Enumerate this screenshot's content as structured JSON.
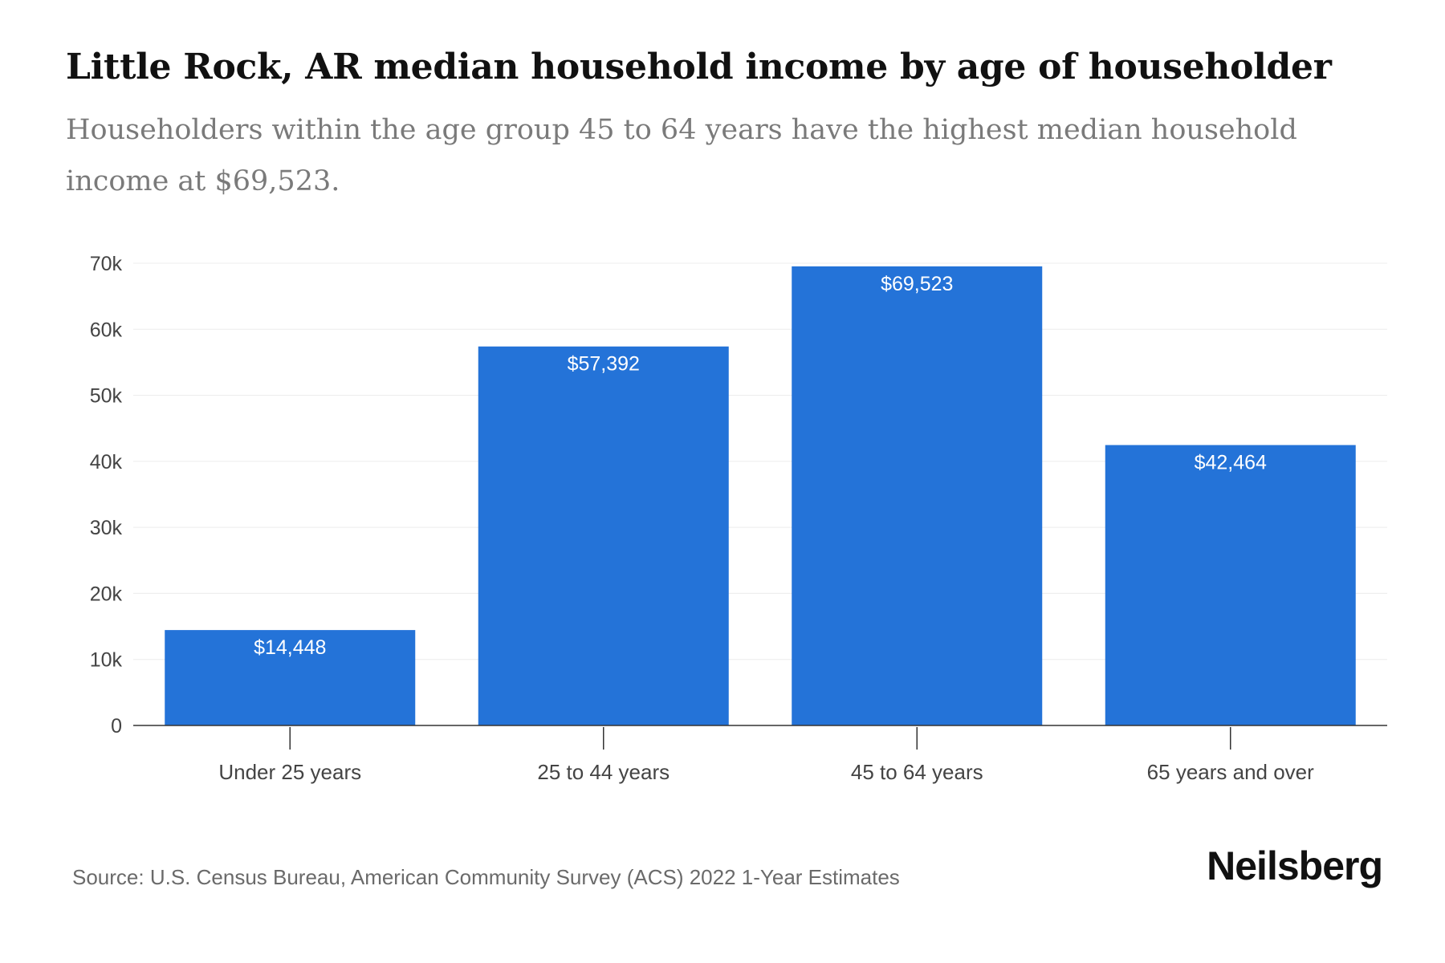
{
  "header": {
    "title": "Little Rock, AR median household income by age of householder",
    "subtitle": "Householders within the age group 45 to 64 years have the highest median household income at $69,523."
  },
  "chart_data": {
    "type": "bar",
    "categories": [
      "Under 25 years",
      "25 to 44 years",
      "45 to 64 years",
      "65 years and over"
    ],
    "values": [
      14448,
      57392,
      69523,
      42464
    ],
    "data_labels": [
      "$14,448",
      "$57,392",
      "$69,523",
      "$42,464"
    ],
    "ylim": [
      0,
      70000
    ],
    "yticks": [
      0,
      10000,
      20000,
      30000,
      40000,
      50000,
      60000,
      70000
    ],
    "ytick_labels": [
      "0",
      "10k",
      "20k",
      "30k",
      "40k",
      "50k",
      "60k",
      "70k"
    ],
    "grid": true,
    "bar_color": "#2473d8",
    "xlabel": "",
    "ylabel": ""
  },
  "footer": {
    "source": "Source: U.S. Census Bureau, American Community Survey (ACS) 2022 1-Year Estimates",
    "logo": "Neilsberg"
  }
}
